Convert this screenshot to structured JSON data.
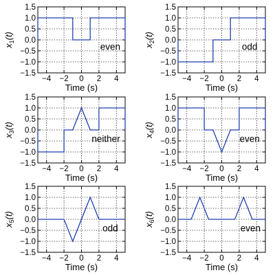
{
  "chart_data": [
    {
      "type": "line",
      "ylabel_base": "x",
      "ylabel_sub": "1",
      "ylabel_arg": "(t)",
      "xlabel": "Time (s)",
      "annotation": "even",
      "xlim": [
        -5,
        5
      ],
      "ylim": [
        -1.5,
        1.5
      ],
      "xticks": [
        "−4",
        "−2",
        "0",
        "2",
        "4"
      ],
      "yticks": [
        "1.5",
        "1.0",
        "0.5",
        "0.0",
        "−0.5",
        "−1.0",
        "−1.5"
      ],
      "grid": true,
      "color": "#1f3fae",
      "x": [
        -5,
        -5,
        -1,
        -1,
        1,
        1,
        5,
        5
      ],
      "y": [
        0,
        1,
        1,
        0,
        0,
        1,
        1,
        0
      ]
    },
    {
      "type": "line",
      "ylabel_base": "x",
      "ylabel_sub": "2",
      "ylabel_arg": "(t)",
      "xlabel": "Time (s)",
      "annotation": "odd",
      "xlim": [
        -5,
        5
      ],
      "ylim": [
        -1.5,
        1.5
      ],
      "xticks": [
        "−4",
        "−2",
        "0",
        "2",
        "4"
      ],
      "yticks": [
        "1.5",
        "1.0",
        "0.5",
        "0.0",
        "−0.5",
        "−1.0",
        "−1.5"
      ],
      "grid": true,
      "color": "#1f3fae",
      "x": [
        -5,
        -5,
        -1,
        -1,
        1,
        1,
        5,
        5
      ],
      "y": [
        0,
        -1,
        -1,
        0,
        0,
        1,
        1,
        0
      ]
    },
    {
      "type": "line",
      "ylabel_base": "x",
      "ylabel_sub": "3",
      "ylabel_arg": "(t)",
      "xlabel": "Time (s)",
      "annotation": "neither",
      "xlim": [
        -5,
        5
      ],
      "ylim": [
        -1.5,
        1.5
      ],
      "xticks": [
        "−4",
        "−2",
        "0",
        "2",
        "4"
      ],
      "yticks": [
        "1.5",
        "1.0",
        "0.5",
        "0.0",
        "−0.5",
        "−1.0",
        "−1.5"
      ],
      "grid": true,
      "color": "#1f3fae",
      "x": [
        -5,
        -5,
        -2,
        -2,
        -1,
        0,
        1,
        2,
        2,
        5,
        5
      ],
      "y": [
        0,
        -1,
        -1,
        0,
        0,
        1,
        0,
        0,
        1,
        1,
        0
      ]
    },
    {
      "type": "line",
      "ylabel_base": "x",
      "ylabel_sub": "4",
      "ylabel_arg": "(t)",
      "xlabel": "Time (s)",
      "annotation": "even",
      "xlim": [
        -5,
        5
      ],
      "ylim": [
        -1.5,
        1.5
      ],
      "xticks": [
        "−4",
        "−2",
        "0",
        "2",
        "4"
      ],
      "yticks": [
        "1.5",
        "1.0",
        "0.5",
        "0.0",
        "−0.5",
        "−1.0",
        "−1.5"
      ],
      "grid": true,
      "color": "#1f3fae",
      "x": [
        -5,
        -5,
        -2,
        -2,
        -1,
        0,
        1,
        2,
        2,
        5,
        5
      ],
      "y": [
        0,
        1,
        1,
        0,
        0,
        -1,
        0,
        0,
        1,
        1,
        0
      ]
    },
    {
      "type": "line",
      "ylabel_base": "x",
      "ylabel_sub": "5",
      "ylabel_arg": "(t)",
      "xlabel": "Time (s)",
      "annotation": "odd",
      "xlim": [
        -5,
        5
      ],
      "ylim": [
        -1.5,
        1.5
      ],
      "xticks": [
        "−4",
        "−2",
        "0",
        "2",
        "4"
      ],
      "yticks": [
        "1.5",
        "1.0",
        "0.5",
        "0.0",
        "−0.5",
        "−1.0",
        "−1.5"
      ],
      "grid": true,
      "color": "#1f3fae",
      "x": [
        -5,
        -2,
        -1,
        1,
        2,
        5
      ],
      "y": [
        0,
        0,
        -1,
        1,
        0,
        0
      ]
    },
    {
      "type": "line",
      "ylabel_base": "x",
      "ylabel_sub": "6",
      "ylabel_arg": "(t)",
      "xlabel": "Time (s)",
      "annotation": "even",
      "xlim": [
        -5,
        5
      ],
      "ylim": [
        -1.5,
        1.5
      ],
      "xticks": [
        "−4",
        "−2",
        "0",
        "2",
        "4"
      ],
      "yticks": [
        "1.5",
        "1.0",
        "0.5",
        "0.0",
        "−0.5",
        "−1.0",
        "−1.5"
      ],
      "grid": true,
      "color": "#1f3fae",
      "x": [
        -5,
        -3.5,
        -2.5,
        -1.5,
        1.5,
        2.5,
        3.5,
        5
      ],
      "y": [
        0,
        0,
        1,
        0,
        0,
        1,
        0,
        0
      ]
    }
  ]
}
